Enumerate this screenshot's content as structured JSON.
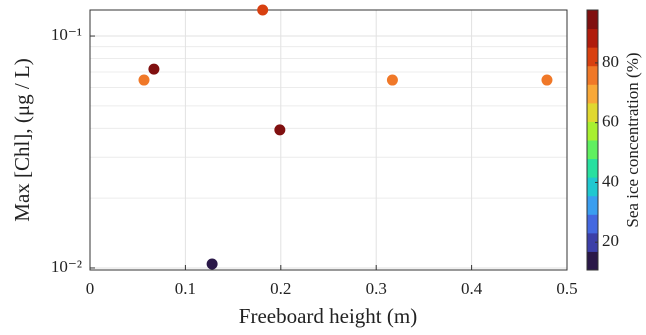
{
  "chart_data": {
    "type": "scatter",
    "xlabel": "Freeboard height (m)",
    "ylabel": "Max [Chl], (μg / L)",
    "colorbar_label": "Sea ice concentration (%)",
    "x": [
      0.0566,
      0.067,
      0.128,
      0.181,
      0.199,
      0.317,
      0.479
    ],
    "values": [
      0.0646,
      0.072,
      0.0104,
      0.1295,
      0.0394,
      0.0646,
      0.0646
    ],
    "color_values": [
      77,
      95,
      12,
      83,
      95,
      77,
      77
    ],
    "xlim": [
      0,
      0.5
    ],
    "xticks": [
      0,
      0.1,
      0.2,
      0.3,
      0.4,
      0.5
    ],
    "ylim": [
      0.0098,
      0.1295
    ],
    "log_y": true,
    "yticks": [
      {
        "value": 0.01,
        "label": "10⁻²"
      },
      {
        "value": 0.1,
        "label": "10⁻¹"
      }
    ],
    "yminor": [
      0.02,
      0.03,
      0.04,
      0.05,
      0.06,
      0.07,
      0.08,
      0.09
    ],
    "grid": true,
    "clim": [
      10.7,
      97.7
    ],
    "cticks": [
      20,
      40,
      60,
      80
    ],
    "colormap": [
      "#2a1848",
      "#3c3fa8",
      "#4468e0",
      "#3a9ef0",
      "#20c8d0",
      "#28e0a0",
      "#60f060",
      "#a8f030",
      "#e0d830",
      "#f8a838",
      "#f07828",
      "#d84010",
      "#b01c0c",
      "#801010"
    ]
  }
}
